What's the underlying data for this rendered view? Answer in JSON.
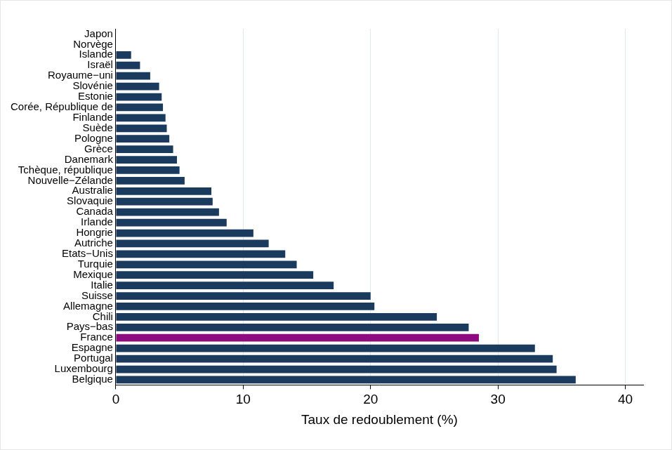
{
  "chart_data": {
    "type": "bar",
    "orientation": "horizontal",
    "x_label": "Taux de redoublement (%)",
    "categories": [
      "Japon",
      "Norvège",
      "Islande",
      "Israël",
      "Royaume−uni",
      "Slovénie",
      "Estonie",
      "Corée, République de",
      "Finlande",
      "Suède",
      "Pologne",
      "Grèce",
      "Danemark",
      "Tchèque, république",
      "Nouvelle−Zélande",
      "Australie",
      "Slovaquie",
      "Canada",
      "Irlande",
      "Hongrie",
      "Autriche",
      "Etats−Unis",
      "Turquie",
      "Mexique",
      "Italie",
      "Suisse",
      "Allemagne",
      "Chili",
      "Pays−bas",
      "France",
      "Espagne",
      "Portugal",
      "Luxembourg",
      "Belgique"
    ],
    "values": [
      0,
      0,
      1.2,
      1.9,
      2.7,
      3.4,
      3.6,
      3.7,
      3.9,
      4.0,
      4.2,
      4.5,
      4.8,
      5.0,
      5.4,
      7.5,
      7.6,
      8.1,
      8.7,
      10.8,
      12.0,
      13.3,
      14.2,
      15.5,
      17.1,
      20.0,
      20.3,
      25.2,
      27.7,
      28.5,
      32.9,
      34.3,
      34.6,
      36.1
    ],
    "colors": [
      "#1a3a5e",
      "#1a3a5e",
      "#1a3a5e",
      "#1a3a5e",
      "#1a3a5e",
      "#1a3a5e",
      "#1a3a5e",
      "#1a3a5e",
      "#1a3a5e",
      "#1a3a5e",
      "#1a3a5e",
      "#1a3a5e",
      "#1a3a5e",
      "#1a3a5e",
      "#1a3a5e",
      "#1a3a5e",
      "#1a3a5e",
      "#1a3a5e",
      "#1a3a5e",
      "#1a3a5e",
      "#1a3a5e",
      "#1a3a5e",
      "#1a3a5e",
      "#1a3a5e",
      "#1a3a5e",
      "#1a3a5e",
      "#1a3a5e",
      "#1a3a5e",
      "#1a3a5e",
      "#8e0b7f",
      "#1a3a5e",
      "#1a3a5e",
      "#1a3a5e",
      "#1a3a5e"
    ],
    "xlim": [
      0,
      41.4
    ],
    "xticks": [
      0,
      10,
      20,
      30,
      40
    ],
    "grid": true
  }
}
